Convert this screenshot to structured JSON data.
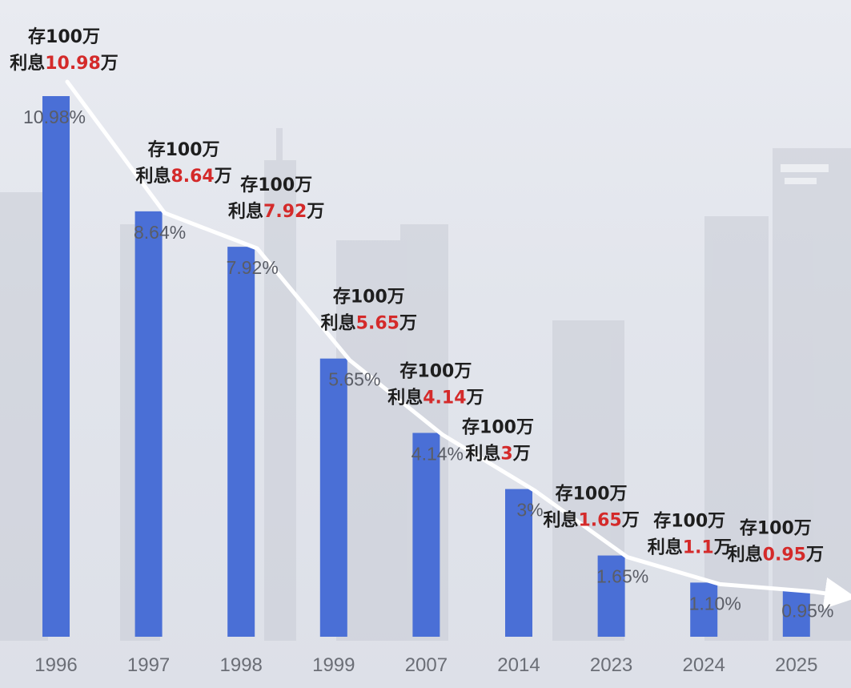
{
  "chart_data": {
    "type": "bar",
    "categories": [
      "1996",
      "1997",
      "1998",
      "1999",
      "2007",
      "2014",
      "2023",
      "2024",
      "2025"
    ],
    "values": [
      10.98,
      8.64,
      7.92,
      5.65,
      4.14,
      3,
      1.65,
      1.1,
      0.95
    ],
    "value_labels": [
      "10.98%",
      "8.64%",
      "7.92%",
      "5.65%",
      "4.14%",
      "3%",
      "1.65%",
      "1.10%",
      "0.95%"
    ],
    "annotations": [
      {
        "line1": "存100万",
        "prefix": "利息",
        "amount": "10.98",
        "suffix": "万"
      },
      {
        "line1": "存100万",
        "prefix": "利息",
        "amount": "8.64",
        "suffix": "万"
      },
      {
        "line1": "存100万",
        "prefix": "利息",
        "amount": "7.92",
        "suffix": "万"
      },
      {
        "line1": "存100万",
        "prefix": "利息",
        "amount": "5.65",
        "suffix": "万"
      },
      {
        "line1": "存100万",
        "prefix": "利息",
        "amount": "4.14",
        "suffix": "万"
      },
      {
        "line1": "存100万",
        "prefix": "利息",
        "amount": "3",
        "suffix": "万"
      },
      {
        "line1": "存100万",
        "prefix": "利息",
        "amount": "1.65",
        "suffix": "万"
      },
      {
        "line1": "存100万",
        "prefix": "利息",
        "amount": "1.1",
        "suffix": "万"
      },
      {
        "line1": "存100万",
        "prefix": "利息",
        "amount": "0.95",
        "suffix": "万"
      }
    ],
    "title": "",
    "xlabel": "",
    "ylabel": "",
    "ylim": [
      0,
      11
    ],
    "grid": false,
    "trend_arrow": true,
    "colors": {
      "bar": "#4a6fd6",
      "label": "#5a5d66",
      "tick": "#6b6e76",
      "annotation": "#1e1e1e",
      "highlight": "#d42a2a",
      "arrow": "#ffffff",
      "background": "#e4e7ee"
    }
  }
}
